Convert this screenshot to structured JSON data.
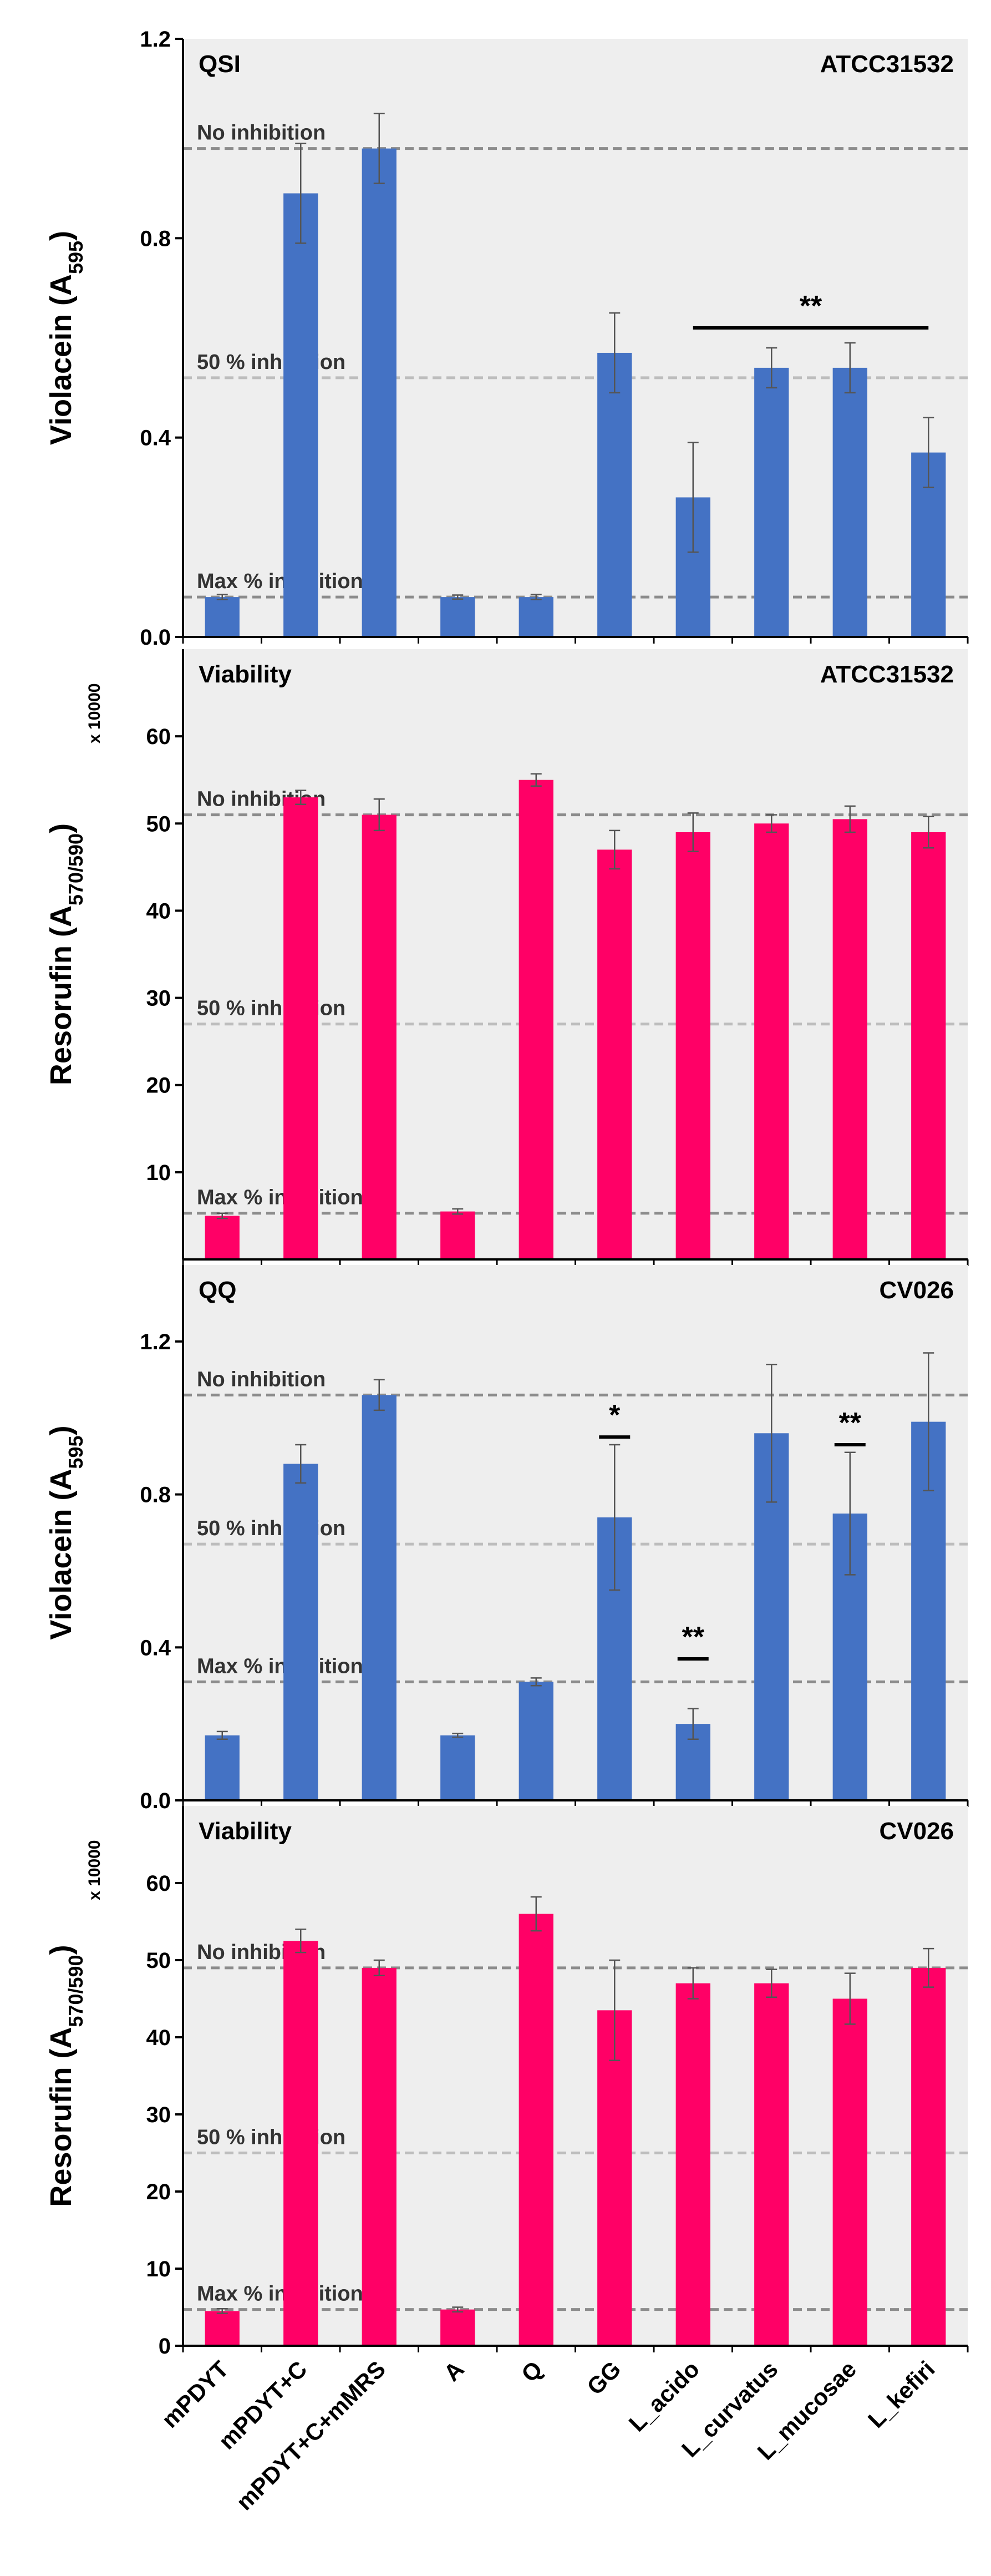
{
  "chart_data": {
    "type": "bar",
    "categories": [
      "mPDYT",
      "mPDYT+C",
      "mPDYT+C+mMRS",
      "A",
      "Q",
      "GG",
      "L_acido",
      "L_curvatus",
      "L_mucosae",
      "L_kefiri"
    ],
    "panels": [
      {
        "id": "qsi",
        "title": "QSI",
        "strain": "ATCC31532",
        "ylabel_main": "Violacein (A",
        "ylabel_sub": "595",
        "ylabel_end": ")",
        "multiplier": "",
        "ylim": [
          0,
          1.2
        ],
        "yticks": [
          0,
          0.4,
          0.8,
          1.2
        ],
        "ytick_labels": [
          "0.0",
          "0.4",
          "0.8",
          "1.2"
        ],
        "color": "#4472C4",
        "values": [
          0.08,
          0.89,
          0.98,
          0.08,
          0.08,
          0.57,
          0.28,
          0.54,
          0.54,
          0.37
        ],
        "errors": [
          0.005,
          0.1,
          0.07,
          0.004,
          0.005,
          0.08,
          0.11,
          0.04,
          0.05,
          0.07
        ],
        "ref_lines": [
          {
            "label": "No inhibition",
            "value": 0.98,
            "color": "#8c8c8c"
          },
          {
            "label": "50 % inhibition",
            "value": 0.52,
            "color": "#bdbdbd"
          },
          {
            "label": "Max % inhibition",
            "value": 0.08,
            "color": "#8c8c8c"
          }
        ],
        "significance": [
          {
            "label": "**",
            "from": 6,
            "to": 9,
            "value": 0.62
          }
        ]
      },
      {
        "id": "viability1",
        "title": "Viability",
        "strain": "ATCC31532",
        "ylabel_main": "Resorufin (A",
        "ylabel_sub": "570/590",
        "ylabel_end": ")",
        "multiplier": "x 10000",
        "ylim": [
          0,
          70
        ],
        "yticks": [
          10,
          20,
          30,
          40,
          50,
          60
        ],
        "ytick_labels": [
          "10",
          "20",
          "30",
          "40",
          "50",
          "60"
        ],
        "color": "#FF0066",
        "values": [
          5,
          53,
          51,
          5.5,
          55,
          47,
          49,
          50,
          50.5,
          49
        ],
        "errors": [
          0.3,
          0.8,
          1.8,
          0.3,
          0.7,
          2.2,
          2.2,
          1,
          1.5,
          1.8
        ],
        "ref_lines": [
          {
            "label": "No inhibition",
            "value": 51,
            "color": "#8c8c8c"
          },
          {
            "label": "50 % inhibition",
            "value": 27,
            "color": "#bdbdbd"
          },
          {
            "label": "Max % inhibition",
            "value": 5.3,
            "color": "#8c8c8c"
          }
        ],
        "significance": []
      },
      {
        "id": "qq",
        "title": "QQ",
        "strain": "CV026",
        "ylabel_main": "Violacein (A",
        "ylabel_sub": "595",
        "ylabel_end": ")",
        "multiplier": "",
        "ylim": [
          0,
          1.4
        ],
        "yticks": [
          0,
          0.4,
          0.8,
          1.2
        ],
        "ytick_labels": [
          "0.0",
          "0.4",
          "0.8",
          "1.2"
        ],
        "color": "#4472C4",
        "values": [
          0.17,
          0.88,
          1.06,
          0.17,
          0.31,
          0.74,
          0.2,
          0.96,
          0.75,
          0.99
        ],
        "errors": [
          0.01,
          0.05,
          0.04,
          0.005,
          0.01,
          0.19,
          0.04,
          0.18,
          0.16,
          0.18
        ],
        "ref_lines": [
          {
            "label": "No inhibition",
            "value": 1.06,
            "color": "#8c8c8c"
          },
          {
            "label": "50 % inhibition",
            "value": 0.67,
            "color": "#bdbdbd"
          },
          {
            "label": "Max % inhibition",
            "value": 0.31,
            "color": "#8c8c8c"
          }
        ],
        "significance": [
          {
            "label": "*",
            "from": 5,
            "to": 5,
            "value": 0.95
          },
          {
            "label": "**",
            "from": 6,
            "to": 6,
            "value": 0.37
          },
          {
            "label": "**",
            "from": 8,
            "to": 8,
            "value": 0.93
          }
        ]
      },
      {
        "id": "viability2",
        "title": "Viability",
        "strain": "CV026",
        "ylabel_main": "Resorufin (A",
        "ylabel_sub": "570/590",
        "ylabel_end": ")",
        "multiplier": "x 10000",
        "ylim": [
          0,
          70
        ],
        "yticks": [
          0,
          10,
          20,
          30,
          40,
          50,
          60
        ],
        "ytick_labels": [
          "0",
          "10",
          "20",
          "30",
          "40",
          "50",
          "60"
        ],
        "color": "#FF0066",
        "values": [
          4.5,
          52.5,
          49,
          4.7,
          56,
          43.5,
          47,
          47,
          45,
          49
        ],
        "errors": [
          0.3,
          1.5,
          1,
          0.3,
          2.2,
          6.5,
          2,
          1.8,
          3.3,
          2.5
        ],
        "ref_lines": [
          {
            "label": "No inhibition",
            "value": 49,
            "color": "#8c8c8c"
          },
          {
            "label": "50 % inhibition",
            "value": 25,
            "color": "#bdbdbd"
          },
          {
            "label": "Max % inhibition",
            "value": 4.7,
            "color": "#8c8c8c"
          }
        ],
        "significance": []
      }
    ]
  }
}
